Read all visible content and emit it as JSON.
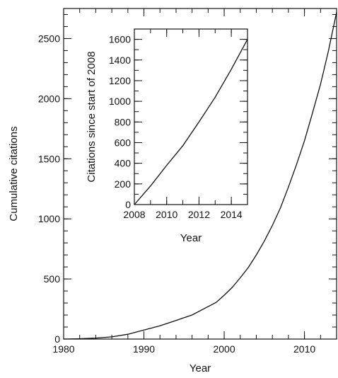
{
  "chart_data": [
    {
      "type": "line",
      "xlabel": "Year",
      "ylabel": "Cumulative citations",
      "xlim": [
        1980,
        2014
      ],
      "ylim": [
        0,
        2750
      ],
      "xticks": [
        1980,
        1990,
        2000,
        2010
      ],
      "yticks": [
        0,
        500,
        1000,
        1500,
        2000,
        2500
      ],
      "grid": false,
      "series": [
        {
          "x": [
            1980,
            1982,
            1984,
            1986,
            1988,
            1990,
            1992,
            1994,
            1996,
            1998,
            1999,
            2000,
            2001,
            2002,
            2003,
            2004,
            2005,
            2006,
            2007,
            2008,
            2009,
            2010,
            2011,
            2012,
            2013,
            2014
          ],
          "y": [
            0,
            3,
            8,
            18,
            40,
            75,
            110,
            155,
            200,
            270,
            305,
            365,
            430,
            510,
            595,
            700,
            815,
            945,
            1090,
            1265,
            1450,
            1650,
            1880,
            2120,
            2400,
            2720
          ]
        }
      ]
    },
    {
      "type": "line",
      "xlabel": "Year",
      "ylabel": "Citations since start of 2008",
      "xlim": [
        2008,
        2015
      ],
      "ylim": [
        0,
        1700
      ],
      "xticks": [
        2008,
        2010,
        2012,
        2014
      ],
      "yticks": [
        0,
        200,
        400,
        600,
        800,
        1000,
        1200,
        1400,
        1600
      ],
      "grid": false,
      "series": [
        {
          "x": [
            2008,
            2009,
            2010,
            2011,
            2012,
            2013,
            2014,
            2015
          ],
          "y": [
            0,
            180,
            380,
            570,
            800,
            1040,
            1310,
            1600
          ]
        }
      ]
    }
  ]
}
